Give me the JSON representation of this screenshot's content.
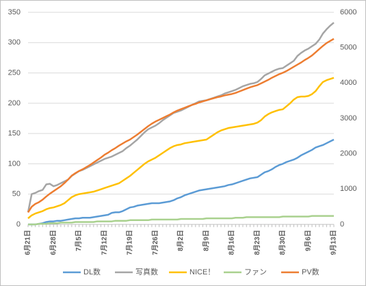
{
  "chart_data": {
    "type": "line",
    "categories": [
      "6月21日",
      null,
      null,
      null,
      null,
      null,
      null,
      "6月28日",
      null,
      null,
      null,
      null,
      null,
      null,
      "7月5日",
      null,
      null,
      null,
      null,
      null,
      null,
      "7月12日",
      null,
      null,
      null,
      null,
      null,
      null,
      "7月19日",
      null,
      null,
      null,
      null,
      null,
      null,
      "7月26日",
      null,
      null,
      null,
      null,
      null,
      null,
      "8月2日",
      null,
      null,
      null,
      null,
      null,
      null,
      "8月9日",
      null,
      null,
      null,
      null,
      null,
      null,
      "8月16日",
      null,
      null,
      null,
      null,
      null,
      null,
      "8月23日",
      null,
      null,
      null,
      null,
      null,
      null,
      "8月30日",
      null,
      null,
      null,
      null,
      null,
      null,
      "9月6日",
      null,
      null,
      null,
      null,
      null,
      null,
      "9月13日"
    ],
    "series": [
      {
        "name": "DL数",
        "color": "#5b9bd5",
        "values": [
          0,
          0,
          0,
          1,
          2,
          4,
          5,
          5,
          6,
          6,
          7,
          8,
          9,
          10,
          10,
          11,
          11,
          11,
          12,
          13,
          14,
          15,
          16,
          19,
          20,
          20,
          22,
          25,
          28,
          29,
          31,
          32,
          33,
          34,
          35,
          35,
          35,
          36,
          37,
          38,
          40,
          43,
          45,
          48,
          50,
          52,
          54,
          56,
          57,
          58,
          59,
          60,
          61,
          62,
          63,
          65,
          66,
          68,
          70,
          72,
          74,
          76,
          77,
          78,
          82,
          86,
          88,
          91,
          95,
          98,
          100,
          103,
          105,
          107,
          110,
          114,
          117,
          120,
          123,
          127,
          129,
          131,
          134,
          137,
          140
        ]
      },
      {
        "name": "写真数",
        "color": "#a5a5a5",
        "values": [
          20,
          50,
          52,
          55,
          57,
          66,
          67,
          63,
          65,
          68,
          71,
          74,
          80,
          84,
          88,
          90,
          93,
          96,
          99,
          102,
          105,
          108,
          110,
          112,
          115,
          118,
          121,
          126,
          130,
          135,
          140,
          146,
          152,
          157,
          160,
          163,
          167,
          172,
          176,
          180,
          184,
          186,
          188,
          191,
          194,
          197,
          200,
          203,
          204,
          205,
          207,
          209,
          211,
          213,
          216,
          218,
          220,
          222,
          225,
          228,
          230,
          232,
          233,
          235,
          240,
          246,
          249,
          252,
          255,
          257,
          258,
          262,
          266,
          270,
          278,
          283,
          287,
          290,
          294,
          298,
          305,
          315,
          322,
          328,
          333
        ]
      },
      {
        "name": "NICE！",
        "color": "#ffc000",
        "values": [
          10,
          15,
          18,
          20,
          22,
          25,
          27,
          28,
          30,
          32,
          35,
          40,
          45,
          48,
          50,
          51,
          52,
          53,
          54,
          56,
          58,
          60,
          62,
          64,
          66,
          68,
          72,
          76,
          80,
          85,
          90,
          95,
          100,
          104,
          107,
          110,
          114,
          118,
          122,
          126,
          129,
          131,
          132,
          134,
          135,
          136,
          137,
          138,
          139,
          140,
          144,
          148,
          152,
          155,
          157,
          159,
          160,
          161,
          162,
          163,
          164,
          165,
          166,
          168,
          172,
          178,
          182,
          185,
          187,
          189,
          190,
          195,
          200,
          206,
          210,
          211,
          211,
          212,
          215,
          220,
          228,
          235,
          238,
          240,
          242
        ]
      },
      {
        "name": "ファン",
        "color": "#a9d18e",
        "values": [
          0,
          0,
          0,
          1,
          1,
          1,
          2,
          2,
          2,
          3,
          3,
          3,
          3,
          4,
          4,
          4,
          4,
          4,
          4,
          5,
          5,
          5,
          5,
          5,
          6,
          6,
          6,
          6,
          7,
          7,
          7,
          7,
          7,
          7,
          8,
          8,
          8,
          8,
          8,
          8,
          8,
          8,
          9,
          9,
          9,
          9,
          9,
          9,
          9,
          10,
          10,
          10,
          10,
          10,
          10,
          10,
          10,
          11,
          11,
          11,
          12,
          12,
          12,
          12,
          12,
          12,
          12,
          12,
          12,
          12,
          13,
          13,
          13,
          13,
          13,
          13,
          13,
          13,
          14,
          14,
          14,
          14,
          14,
          14,
          14
        ]
      },
      {
        "name": "PV数",
        "color": "#ed7d31",
        "axis": "y2",
        "values": [
          340,
          500,
          580,
          630,
          700,
          790,
          870,
          940,
          1010,
          1080,
          1170,
          1270,
          1380,
          1450,
          1510,
          1560,
          1620,
          1680,
          1750,
          1820,
          1890,
          1970,
          2030,
          2100,
          2160,
          2230,
          2290,
          2350,
          2400,
          2470,
          2540,
          2620,
          2700,
          2780,
          2850,
          2910,
          2960,
          3010,
          3060,
          3110,
          3170,
          3220,
          3260,
          3300,
          3340,
          3380,
          3410,
          3450,
          3480,
          3510,
          3540,
          3570,
          3600,
          3620,
          3650,
          3670,
          3690,
          3720,
          3760,
          3800,
          3840,
          3880,
          3910,
          3940,
          3990,
          4040,
          4090,
          4150,
          4200,
          4250,
          4290,
          4340,
          4400,
          4460,
          4520,
          4580,
          4650,
          4710,
          4780,
          4870,
          4960,
          5050,
          5130,
          5190,
          5250
        ]
      }
    ],
    "ylim": [
      0,
      350
    ],
    "yticks": [
      0,
      50,
      100,
      150,
      200,
      250,
      300,
      350
    ],
    "y2lim": [
      0,
      6000
    ],
    "y2ticks": [
      0,
      1000,
      2000,
      3000,
      4000,
      5000,
      6000
    ],
    "grid": true,
    "legend": "bottom"
  }
}
